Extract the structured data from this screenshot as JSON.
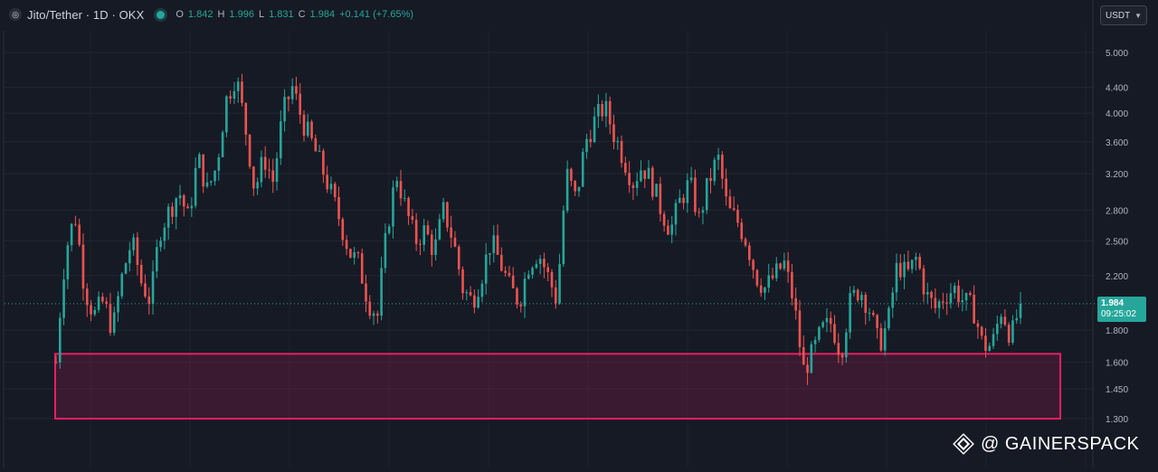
{
  "legend": {
    "title": "Jito/Tether · 1D · OKX",
    "ohlc": [
      {
        "key": "O",
        "value": "1.842"
      },
      {
        "key": "H",
        "value": "1.996"
      },
      {
        "key": "L",
        "value": "1.831"
      },
      {
        "key": "C",
        "value": "1.984"
      }
    ],
    "change": "+0.141 (+7.65%)"
  },
  "currency_select": {
    "value": "USDT"
  },
  "price_tag": {
    "price": "1.984",
    "countdown": "09:25:02"
  },
  "watermark": {
    "text": "@ GAINERSPACK"
  },
  "colors": {
    "up": "#26a69a",
    "down": "#ef5350",
    "zone": "#e91e63",
    "background": "#161a25"
  },
  "chart_data": {
    "type": "candlestick",
    "y_scale": "log",
    "ylim": [
      1.2,
      5.5
    ],
    "y_ticks": [
      "5.000",
      "4.400",
      "4.000",
      "3.600",
      "3.200",
      "2.800",
      "2.500",
      "2.200",
      "1.800",
      "1.600",
      "1.450",
      "1.300"
    ],
    "last_price": 1.984,
    "support_zone": {
      "low": 1.3,
      "high": 1.65
    },
    "close_path": [
      1.6,
      2.4,
      2.75,
      2.1,
      1.9,
      2.0,
      1.8,
      2.2,
      2.5,
      2.15,
      2.0,
      2.6,
      2.8,
      3.0,
      2.7,
      3.4,
      3.0,
      3.3,
      4.2,
      4.6,
      3.8,
      3.0,
      3.4,
      3.1,
      4.0,
      4.4,
      3.9,
      3.6,
      3.3,
      3.0,
      2.7,
      2.4,
      2.3,
      2.0,
      1.9,
      2.6,
      3.2,
      2.8,
      2.5,
      2.6,
      2.4,
      2.8,
      2.5,
      2.1,
      2.0,
      2.2,
      2.5,
      2.3,
      2.1,
      2.0,
      2.3,
      2.4,
      2.2,
      2.0,
      3.2,
      2.9,
      3.6,
      3.9,
      4.1,
      3.7,
      3.4,
      3.1,
      3.3,
      3.1,
      2.8,
      2.6,
      2.9,
      3.1,
      2.7,
      3.1,
      3.4,
      2.8,
      2.7,
      2.5,
      2.2,
      2.1,
      2.2,
      2.3,
      2.0,
      1.55,
      1.65,
      1.8,
      1.85,
      1.65,
      2.0,
      2.1,
      1.95,
      1.7,
      1.85,
      2.3,
      2.2,
      2.35,
      2.05,
      1.95,
      2.05,
      2.1,
      2.0,
      1.95,
      1.7,
      1.7,
      1.95,
      1.75,
      1.98
    ]
  }
}
